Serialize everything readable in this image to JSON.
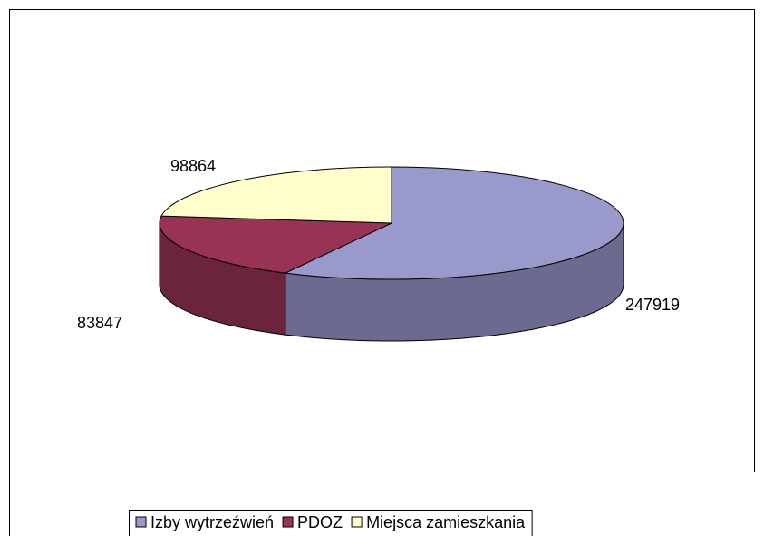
{
  "chart_data": {
    "type": "pie3d",
    "categories": [
      "Izby wytrzeźwień",
      "PDOZ",
      "Miejsca zamieszkania"
    ],
    "values": [
      247919,
      83847,
      98864
    ],
    "colors": [
      "#9999cc",
      "#993355",
      "#ffffcc"
    ],
    "legend": "bottom"
  }
}
